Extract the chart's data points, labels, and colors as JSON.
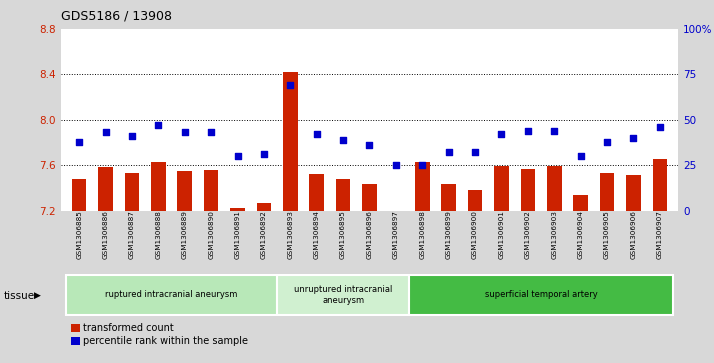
{
  "title": "GDS5186 / 13908",
  "samples": [
    "GSM1306885",
    "GSM1306886",
    "GSM1306887",
    "GSM1306888",
    "GSM1306889",
    "GSM1306890",
    "GSM1306891",
    "GSM1306892",
    "GSM1306893",
    "GSM1306894",
    "GSM1306895",
    "GSM1306896",
    "GSM1306897",
    "GSM1306898",
    "GSM1306899",
    "GSM1306900",
    "GSM1306901",
    "GSM1306902",
    "GSM1306903",
    "GSM1306904",
    "GSM1306905",
    "GSM1306906",
    "GSM1306907"
  ],
  "bar_values": [
    7.48,
    7.58,
    7.53,
    7.63,
    7.55,
    7.56,
    7.22,
    7.27,
    8.42,
    7.52,
    7.48,
    7.43,
    7.2,
    7.63,
    7.43,
    7.38,
    7.59,
    7.57,
    7.59,
    7.34,
    7.53,
    7.51,
    7.65
  ],
  "percentile_values": [
    38,
    43,
    41,
    47,
    43,
    43,
    30,
    31,
    69,
    42,
    39,
    36,
    25,
    25,
    32,
    32,
    42,
    44,
    44,
    30,
    38,
    40,
    46
  ],
  "ylim_left": [
    7.2,
    8.8
  ],
  "ylim_right": [
    0,
    100
  ],
  "yticks_left": [
    7.2,
    7.6,
    8.0,
    8.4,
    8.8
  ],
  "yticks_right": [
    0,
    25,
    50,
    75,
    100
  ],
  "ytick_labels_right": [
    "0",
    "25",
    "50",
    "75",
    "100%"
  ],
  "bar_color": "#cc2200",
  "dot_color": "#0000cc",
  "fig_bg_color": "#d8d8d8",
  "plot_bg_color": "#ffffff",
  "groups": [
    {
      "label": "ruptured intracranial aneurysm",
      "start": 0,
      "end": 8,
      "color": "#b8e8b8"
    },
    {
      "label": "unruptured intracranial\naneurysm",
      "start": 8,
      "end": 13,
      "color": "#d0f0d0"
    },
    {
      "label": "superficial temporal artery",
      "start": 13,
      "end": 23,
      "color": "#44bb44"
    }
  ],
  "legend_items": [
    {
      "label": "transformed count",
      "color": "#cc2200"
    },
    {
      "label": "percentile rank within the sample",
      "color": "#0000cc"
    }
  ],
  "tissue_label": "tissue",
  "grid_lines": [
    7.6,
    8.0,
    8.4
  ]
}
